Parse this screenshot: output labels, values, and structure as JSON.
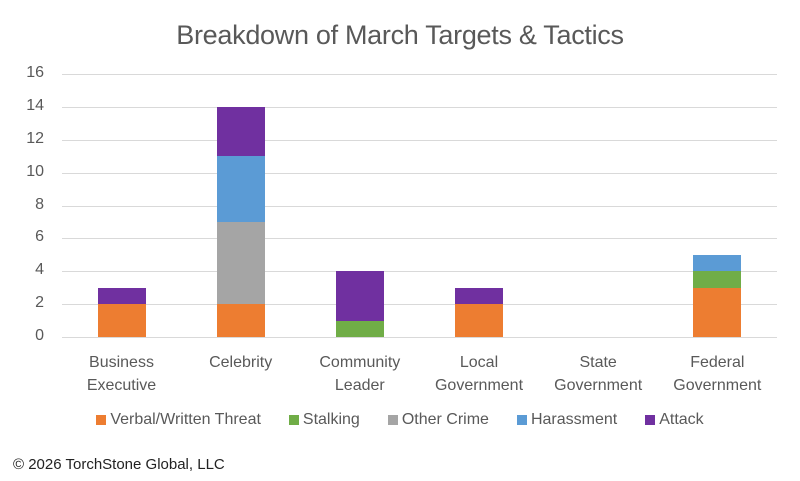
{
  "title": "Breakdown of March Targets & Tactics",
  "copyright": "© 2026 TorchStone Global, LLC",
  "yticks": [
    "0",
    "2",
    "4",
    "6",
    "8",
    "10",
    "12",
    "14",
    "16"
  ],
  "xlabels": [
    {
      "line1": "Business",
      "line2": "Executive"
    },
    {
      "line1": "Celebrity",
      "line2": ""
    },
    {
      "line1": "Community",
      "line2": "Leader"
    },
    {
      "line1": "Local",
      "line2": "Government"
    },
    {
      "line1": "State",
      "line2": "Government"
    },
    {
      "line1": "Federal",
      "line2": "Government"
    }
  ],
  "legend": [
    {
      "label": "Verbal/Written Threat",
      "color": "#ed7d31"
    },
    {
      "label": "Stalking",
      "color": "#70ad47"
    },
    {
      "label": "Other Crime",
      "color": "#a5a5a5"
    },
    {
      "label": "Harassment",
      "color": "#5b9bd5"
    },
    {
      "label": "Attack",
      "color": "#7030a0"
    }
  ],
  "chart_data": {
    "type": "bar",
    "stacked": true,
    "title": "Breakdown of March Targets & Tactics",
    "xlabel": "",
    "ylabel": "",
    "ylim": [
      0,
      16
    ],
    "yticks": [
      0,
      2,
      4,
      6,
      8,
      10,
      12,
      14,
      16
    ],
    "grid": true,
    "legend_position": "bottom",
    "categories": [
      "Business Executive",
      "Celebrity",
      "Community Leader",
      "Local Government",
      "State Government",
      "Federal Government"
    ],
    "series": [
      {
        "name": "Verbal/Written Threat",
        "color": "#ed7d31",
        "values": [
          2,
          2,
          0,
          2,
          0,
          3
        ]
      },
      {
        "name": "Stalking",
        "color": "#70ad47",
        "values": [
          0,
          0,
          1,
          0,
          0,
          1
        ]
      },
      {
        "name": "Other Crime",
        "color": "#a5a5a5",
        "values": [
          0,
          5,
          0,
          0,
          0,
          0
        ]
      },
      {
        "name": "Harassment",
        "color": "#5b9bd5",
        "values": [
          0,
          4,
          0,
          0,
          0,
          1
        ]
      },
      {
        "name": "Attack",
        "color": "#7030a0",
        "values": [
          1,
          3,
          3,
          1,
          0,
          0
        ]
      }
    ],
    "annotations": [
      "© 2026 TorchStone Global, LLC"
    ]
  }
}
